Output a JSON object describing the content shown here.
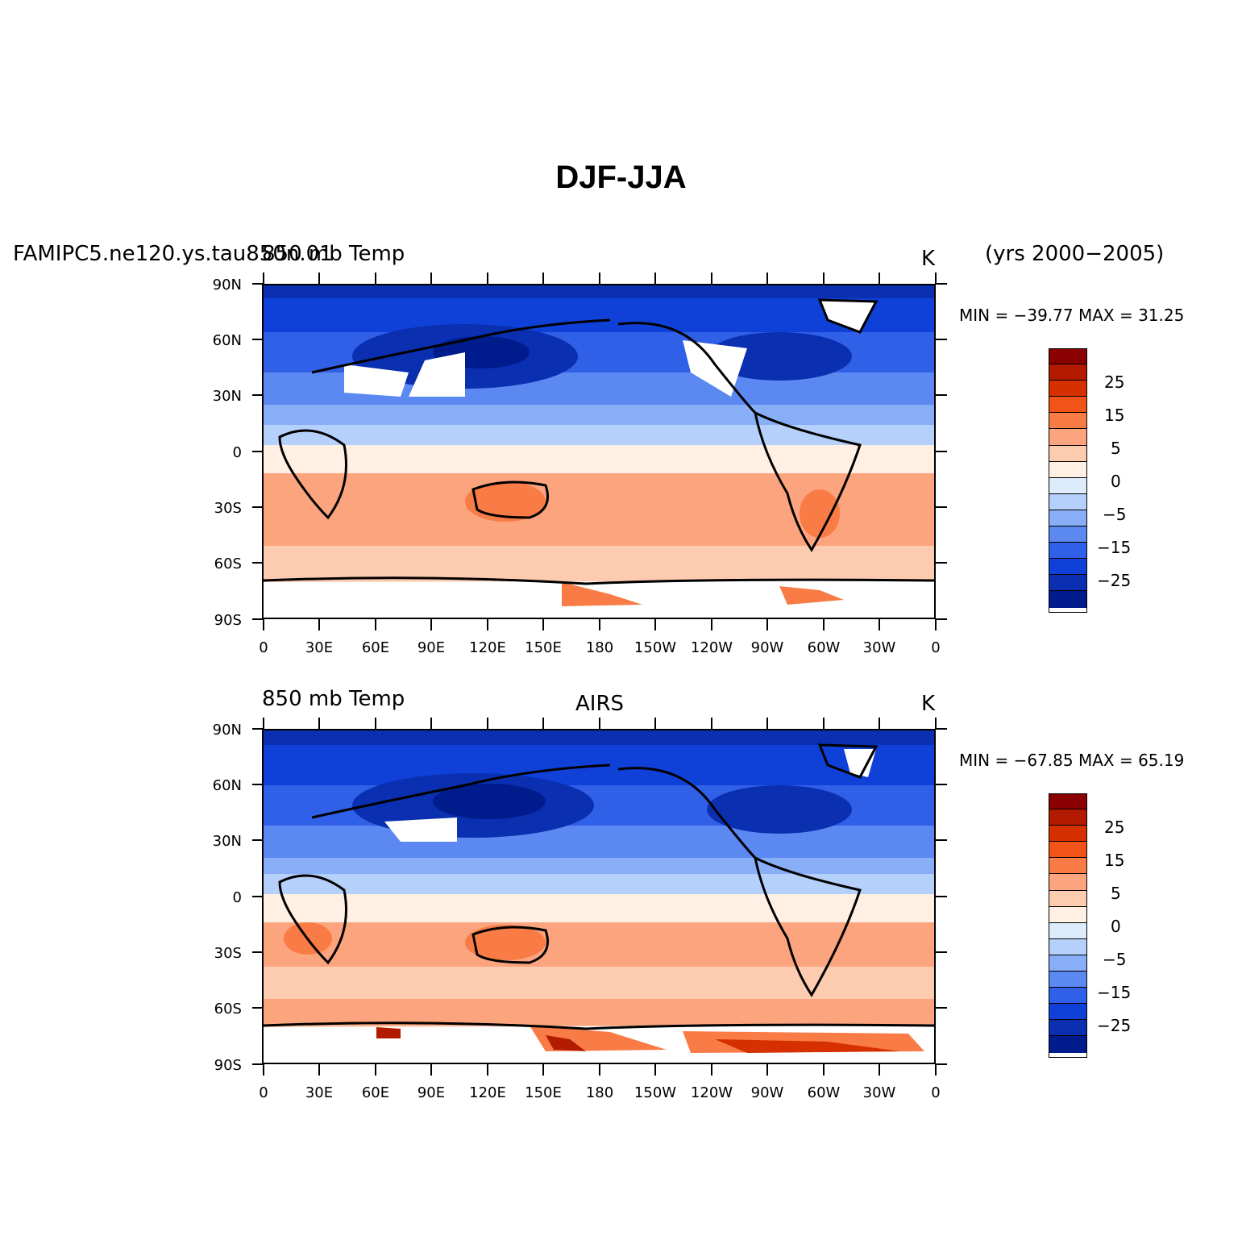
{
  "figure": {
    "title": "DJF-JJA"
  },
  "panels": [
    {
      "left_title": "FAMIPC5.ne120.ys.tau850n.01",
      "center_title": "850 mb Temp",
      "right_title": "K",
      "extra_title": "(yrs 2000−2005)",
      "stats": "MIN = −39.77  MAX =  31.25"
    },
    {
      "left_title": "850 mb Temp",
      "center_title": "AIRS",
      "right_title": "K",
      "stats": "MIN = −67.85  MAX =  65.19"
    }
  ],
  "lat_ticks": [
    "90N",
    "60N",
    "30N",
    "0",
    "30S",
    "60S",
    "90S"
  ],
  "lon_ticks": [
    "0",
    "30E",
    "60E",
    "90E",
    "120E",
    "150E",
    "180",
    "150W",
    "120W",
    "90W",
    "60W",
    "30W",
    "0"
  ],
  "colorbar": {
    "labels": [
      "25",
      "15",
      "5",
      "0",
      "−5",
      "−15",
      "−25"
    ],
    "colors": [
      "#8b0000",
      "#b21b00",
      "#d63000",
      "#f25316",
      "#f97b45",
      "#fba47e",
      "#fdcbb0",
      "#fff0e3",
      "#dcecfd",
      "#b5d0fb",
      "#87aef6",
      "#5b88f1",
      "#3060e8",
      "#0f40d8",
      "#0a2fb0",
      "#001c8c"
    ]
  },
  "chart_data": {
    "type": "heatmap",
    "variable": "850 mb Temp",
    "units": "K",
    "season_difference": "DJF-JJA",
    "x_range": [
      0,
      360
    ],
    "y_range": [
      -90,
      90
    ],
    "contour_levels": [
      -35,
      -30,
      -25,
      -20,
      -15,
      -10,
      -5,
      -2,
      0,
      2,
      5,
      10,
      15,
      20,
      25,
      30
    ],
    "panels": [
      {
        "name": "FAMIPC5.ne120.ys.tau850n.01",
        "period": "yrs 2000-2005",
        "min": -39.77,
        "max": 31.25
      },
      {
        "name": "AIRS",
        "min": -67.85,
        "max": 65.19
      }
    ]
  }
}
